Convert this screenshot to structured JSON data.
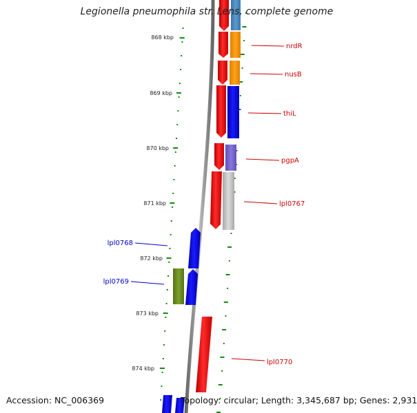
{
  "title": "Legionella pneumophila str. Lens, complete genome",
  "footer": {
    "accession": "Accession: NC_006369",
    "topology": "Topology: circular; Length: 3,345,687 bp; Genes: 2,931"
  },
  "scale_ticks": [
    {
      "label": "868 kbp",
      "kbp": 868
    },
    {
      "label": "869 kbp",
      "kbp": 869
    },
    {
      "label": "870 kbp",
      "kbp": 870
    },
    {
      "label": "871 kbp",
      "kbp": 871
    },
    {
      "label": "872 kbp",
      "kbp": 872
    },
    {
      "label": "873 kbp",
      "kbp": 873
    },
    {
      "label": "874 kbp",
      "kbp": 874
    }
  ],
  "gene_labels": [
    {
      "name": "nrdR",
      "strand": "forward",
      "color": "#cc0000"
    },
    {
      "name": "nusB",
      "strand": "forward",
      "color": "#cc0000"
    },
    {
      "name": "thiL",
      "strand": "forward",
      "color": "#cc0000"
    },
    {
      "name": "pgpA",
      "strand": "forward",
      "color": "#cc0000"
    },
    {
      "name": "lpl0767",
      "strand": "forward",
      "color": "#cc0000"
    },
    {
      "name": "lpl0768",
      "strand": "reverse",
      "color": "#0000cc"
    },
    {
      "name": "lpl0769",
      "strand": "reverse",
      "color": "#0000cc"
    },
    {
      "name": "lpl0770",
      "strand": "forward",
      "color": "#cc0000"
    }
  ],
  "colors": {
    "forward_gene": "#ee1111",
    "reverse_gene": "#0000ee",
    "cog_orange": "#ff9900",
    "cog_blue": "#0000ff",
    "cog_steelblue": "#4488bb",
    "cog_purple": "#7766cc",
    "cog_grey": "#bbbbbb",
    "cog_green": "#6b8e23",
    "backbone": "#888888",
    "tick_green": "#118811"
  }
}
